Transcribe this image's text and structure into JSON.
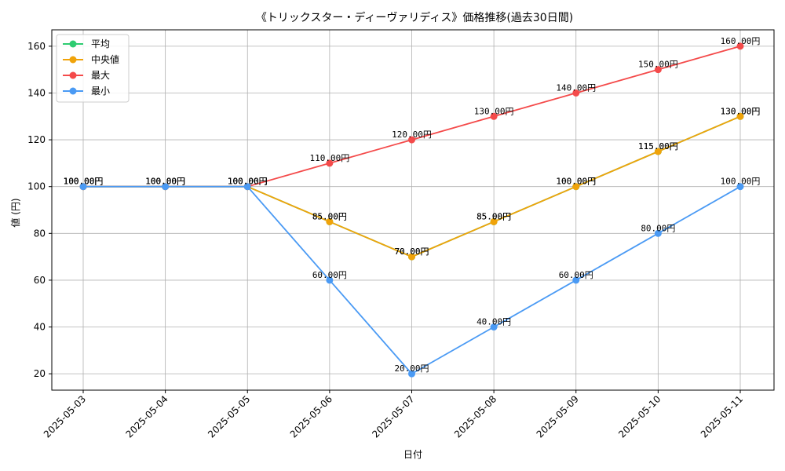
{
  "chart_data": {
    "type": "line",
    "title": "《トリックスター・ディーヴァリディス》価格推移(過去30日間)",
    "xlabel": "日付",
    "ylabel": "値 (円)",
    "categories": [
      "2025-05-03",
      "2025-05-04",
      "2025-05-05",
      "2025-05-06",
      "2025-05-07",
      "2025-05-08",
      "2025-05-09",
      "2025-05-10",
      "2025-05-11"
    ],
    "ylim": [
      13,
      167
    ],
    "yticks": [
      20,
      40,
      60,
      80,
      100,
      120,
      140,
      160
    ],
    "grid": true,
    "legend_position": "top-left",
    "data_label_suffix": "円",
    "series": [
      {
        "name": "平均",
        "color": "#2ecc71",
        "values": [
          100,
          100,
          100,
          85,
          70,
          85,
          100,
          115,
          130
        ]
      },
      {
        "name": "中央値",
        "color": "#f0a30a",
        "values": [
          100,
          100,
          100,
          85,
          70,
          85,
          100,
          115,
          130
        ]
      },
      {
        "name": "最大",
        "color": "#f44a4a",
        "values": [
          100,
          100,
          100,
          110,
          120,
          130,
          140,
          150,
          160
        ]
      },
      {
        "name": "最小",
        "color": "#4a9af4",
        "values": [
          100,
          100,
          100,
          60,
          20,
          40,
          60,
          80,
          100
        ]
      }
    ]
  }
}
